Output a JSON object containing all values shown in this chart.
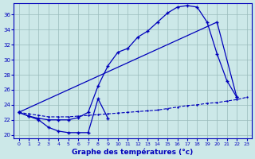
{
  "xlabel": "Graphe des températures (°c)",
  "bg_color": "#cce8e8",
  "line_color": "#0000bb",
  "grid_color": "#99bbbb",
  "xlim": [
    -0.5,
    23.5
  ],
  "ylim": [
    19.5,
    37.5
  ],
  "yticks": [
    20,
    22,
    24,
    26,
    28,
    30,
    32,
    34,
    36
  ],
  "xticks": [
    0,
    1,
    2,
    3,
    4,
    5,
    6,
    7,
    8,
    9,
    10,
    11,
    12,
    13,
    14,
    15,
    16,
    17,
    18,
    19,
    20,
    21,
    22,
    23
  ],
  "line1_x": [
    0,
    1,
    2,
    3,
    4,
    5,
    6,
    7,
    8,
    9
  ],
  "line1_y": [
    23.0,
    22.5,
    22.0,
    21.0,
    20.5,
    20.3,
    20.3,
    20.3,
    24.8,
    22.2
  ],
  "line2_x": [
    0,
    1,
    2,
    3,
    4,
    5,
    6,
    7,
    8,
    9,
    10,
    11,
    12,
    13,
    14,
    15,
    16,
    17,
    18,
    19,
    20,
    21,
    22
  ],
  "line2_y": [
    23.0,
    22.5,
    22.2,
    22.0,
    22.0,
    22.0,
    22.3,
    23.0,
    26.5,
    29.2,
    31.0,
    31.5,
    33.0,
    33.8,
    35.0,
    36.2,
    37.0,
    37.2,
    37.0,
    35.0,
    30.8,
    27.2,
    25.0
  ],
  "line3_x": [
    0,
    20,
    22
  ],
  "line3_y": [
    23.0,
    35.0,
    25.0
  ],
  "line4_x": [
    0,
    1,
    2,
    3,
    4,
    5,
    6,
    7,
    8,
    9,
    10,
    11,
    12,
    13,
    14,
    15,
    16,
    17,
    18,
    19,
    20,
    21,
    22,
    23
  ],
  "line4_y": [
    23.0,
    22.8,
    22.6,
    22.4,
    22.4,
    22.4,
    22.5,
    22.6,
    22.7,
    22.8,
    22.9,
    23.0,
    23.1,
    23.2,
    23.3,
    23.5,
    23.7,
    23.9,
    24.0,
    24.2,
    24.3,
    24.5,
    24.7,
    25.0
  ]
}
